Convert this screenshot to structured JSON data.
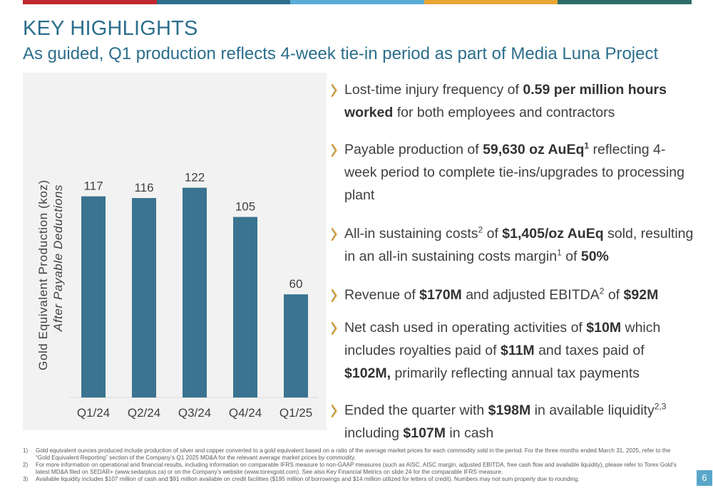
{
  "colors": {
    "bar": "#3a7490",
    "title": "#2c6e8c",
    "topbar": [
      "#c0282d",
      "#2f6e8d",
      "#5aacd6",
      "#e8a534",
      "#2e6e69"
    ]
  },
  "header": {
    "title": "KEY HIGHLIGHTS",
    "subtitle": "As guided, Q1 production reflects 4-week tie-in period as part of Media Luna Project"
  },
  "chart_data": {
    "type": "bar",
    "categories": [
      "Q1/24",
      "Q2/24",
      "Q3/24",
      "Q4/24",
      "Q1/25"
    ],
    "values": [
      117,
      116,
      122,
      105,
      60
    ],
    "data_labels": [
      "117",
      "116",
      "122",
      "105",
      "60"
    ],
    "ylabel": "Gold Equivalent Production (koz)",
    "ylabel_sub": "After Payable Deductions",
    "ylim": [
      0,
      145
    ],
    "grid": false,
    "legend": "none"
  },
  "bullets": [
    {
      "icon": "chevron-icon",
      "parts": [
        {
          "t": "Lost-time injury frequency of "
        },
        {
          "t": "0.59 per million hours worked",
          "b": true
        },
        {
          "t": " for both employees and contractors"
        }
      ]
    },
    {
      "icon": "chevron-icon",
      "parts": [
        {
          "t": "Payable production of "
        },
        {
          "t": "59,630 oz AuEq",
          "b": true
        },
        {
          "t": "1",
          "sup": true,
          "b": true
        },
        {
          "t": " reflecting 4-week period to complete tie-ins/upgrades to processing plant"
        }
      ]
    },
    {
      "icon": "chevron-icon",
      "parts": [
        {
          "t": "All-in sustaining costs"
        },
        {
          "t": "2",
          "sup": true
        },
        {
          "t": " of "
        },
        {
          "t": "$1,405/oz AuEq",
          "b": true
        },
        {
          "t": " sold, resulting in an all-in sustaining costs margin"
        },
        {
          "t": "1",
          "sup": true
        },
        {
          "t": " of "
        },
        {
          "t": "50%",
          "b": true
        }
      ]
    },
    {
      "icon": "chevron-icon",
      "parts": [
        {
          "t": "Revenue of "
        },
        {
          "t": "$170M",
          "b": true
        },
        {
          "t": " and adjusted EBITDA"
        },
        {
          "t": "2",
          "sup": true
        },
        {
          "t": " of "
        },
        {
          "t": "$92M",
          "b": true
        }
      ]
    },
    {
      "icon": "chevron-icon",
      "parts": [
        {
          "t": "Net cash used in operating activities of "
        },
        {
          "t": "$10M",
          "b": true
        },
        {
          "t": " which includes royalties paid of "
        },
        {
          "t": "$11M",
          "b": true
        },
        {
          "t": " and taxes paid of "
        },
        {
          "t": "$102M,",
          "b": true
        },
        {
          "t": " primarily reflecting annual tax payments"
        }
      ]
    },
    {
      "icon": "chevron-icon",
      "parts": [
        {
          "t": "Ended the quarter with "
        },
        {
          "t": "$198M",
          "b": true
        },
        {
          "t": " in available liquidity"
        },
        {
          "t": "2,3",
          "sup": true
        },
        {
          "t": " including "
        },
        {
          "t": "$107M",
          "b": true
        },
        {
          "t": " in cash"
        }
      ]
    }
  ],
  "footnotes": [
    {
      "num": "1)",
      "text": "Gold equivalent ounces produced include production of silver and copper converted to a gold equivalent based on a ratio of the average market prices for each commodity sold in the period. For the three months ended March 31, 2025, refer to the “Gold Equivalent Reporting” section of the Company’s Q1 2025 MD&A for the relevant average market prices by commodity."
    },
    {
      "num": "2)",
      "text": "For more information on operational and financial results, including information on comparable IFRS measure to non-GAAP measures (such as AISC, AISC margin, adjusted EBITDA, free cash flow and available liquidity), please refer to Torex Gold’s latest MD&A filed on SEDAR+ (www.sedarplus.ca) or on the Company’s website (www.torexgold.com). See also Key Financial Metrics on slide 24 for the comparable IFRS measure."
    },
    {
      "num": "3)",
      "text": "Available liquidity includes $107 million of cash and $91 million available on credit facilities ($195 million of borrowings and $14 million utilized for letters of credit). Numbers may not sum properly due to rounding."
    }
  ],
  "page_number": "6"
}
